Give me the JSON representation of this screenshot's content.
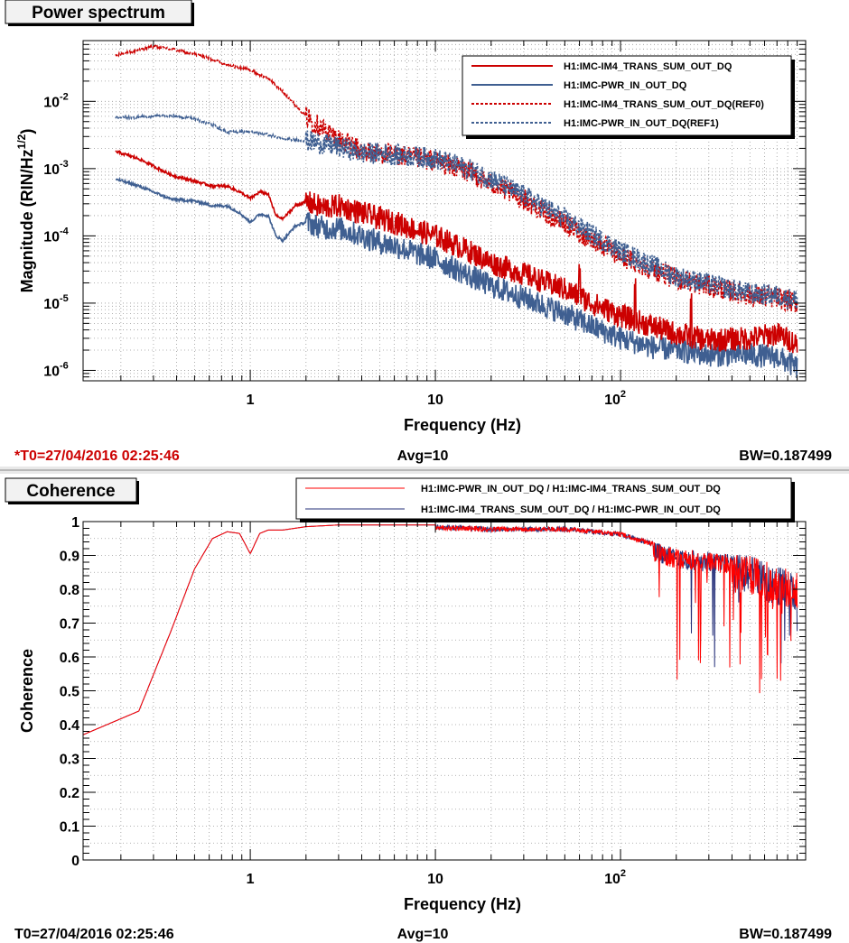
{
  "colors": {
    "red": "#cc0000",
    "blue": "#3f5f91",
    "coh_red": "#ff0000",
    "coh_blue": "#26307a",
    "grid": "#9a9a9a",
    "title_red": "#cc0000"
  },
  "chart_data": [
    {
      "type": "line",
      "title": "Power spectrum",
      "xlabel": "Frequency (Hz)",
      "ylabel_main": "Magnitude (RIN/Hz",
      "ylabel_sup": "1/2",
      "ylabel_end": ")",
      "x_scale": "log",
      "y_scale": "log",
      "xlim": [
        0.125,
        1000
      ],
      "ylim": [
        7e-07,
        0.08
      ],
      "x_ticks": [
        {
          "value": 1,
          "label": "1"
        },
        {
          "value": 10,
          "label": "10"
        },
        {
          "value": 100,
          "label": "10",
          "sup": "2"
        }
      ],
      "y_ticks": [
        {
          "value": 1e-06,
          "label": "10",
          "sup": "-6"
        },
        {
          "value": 1e-05,
          "label": "10",
          "sup": "-5"
        },
        {
          "value": 0.0001,
          "label": "10",
          "sup": "-4"
        },
        {
          "value": 0.001,
          "label": "10",
          "sup": "-3"
        },
        {
          "value": 0.01,
          "label": "10",
          "sup": "-2"
        }
      ],
      "grid": true,
      "legend_position": "top-right",
      "footer": {
        "left": "*T0=27/04/2016 02:25:46",
        "center": "Avg=10",
        "right": "BW=0.187499"
      },
      "series": [
        {
          "name": "H1:IMC-IM4_TRANS_SUM_OUT_DQ",
          "color": "#cc0000",
          "dash": "solid",
          "noise": 0.18,
          "x": [
            0.1875,
            0.25,
            0.375,
            0.5,
            0.625,
            0.75,
            0.875,
            1.0,
            1.125,
            1.25,
            1.375,
            1.5,
            1.75,
            2.0,
            2.5,
            3.0,
            4.0,
            5.0,
            6.0,
            8.0,
            10.0,
            15.0,
            20.0,
            30.0,
            50.0,
            70.0,
            100.0,
            150.0,
            200.0,
            300.0,
            500.0,
            700.0,
            900.0
          ],
          "y": [
            0.0018,
            0.0014,
            0.0008,
            0.00065,
            0.00055,
            0.00055,
            0.00045,
            0.00036,
            0.00045,
            0.00042,
            0.0002,
            0.00018,
            0.00028,
            0.00032,
            0.00026,
            0.00028,
            0.00022,
            0.00018,
            0.00016,
            0.00012,
            0.0001,
            6e-05,
            4e-05,
            2.7e-05,
            1.6e-05,
            1e-05,
            6.5e-06,
            4.5e-06,
            3.5e-06,
            2.8e-06,
            3e-06,
            3.5e-06,
            2.5e-06
          ]
        },
        {
          "name": "H1:IMC-PWR_IN_OUT_DQ",
          "color": "#3f5f91",
          "dash": "solid",
          "noise": 0.18,
          "x": [
            0.1875,
            0.25,
            0.375,
            0.5,
            0.625,
            0.75,
            0.875,
            1.0,
            1.125,
            1.25,
            1.375,
            1.5,
            1.75,
            2.0,
            2.5,
            3.0,
            4.0,
            5.0,
            6.0,
            8.0,
            10.0,
            15.0,
            20.0,
            30.0,
            50.0,
            70.0,
            100.0,
            150.0,
            200.0,
            300.0,
            500.0,
            700.0,
            900.0
          ],
          "y": [
            0.0007,
            0.00055,
            0.00035,
            0.00033,
            0.00028,
            0.00028,
            0.00022,
            0.00016,
            0.00021,
            0.0002,
            0.0001,
            8.5e-05,
            0.00014,
            0.00016,
            0.00013,
            0.00013,
            0.0001,
            8e-05,
            7.2e-05,
            5.4e-05,
            4.5e-05,
            2.6e-05,
            1.8e-05,
            1.2e-05,
            7e-06,
            4.5e-06,
            3e-06,
            2.2e-06,
            2e-06,
            1.7e-06,
            1.7e-06,
            1.6e-06,
            1.1e-06
          ]
        },
        {
          "name": "H1:IMC-IM4_TRANS_SUM_OUT_DQ(REF0)",
          "color": "#cc0000",
          "dash": "dotted",
          "noise": 0.16,
          "x": [
            0.1875,
            0.25,
            0.3,
            0.375,
            0.5,
            0.625,
            0.75,
            1.0,
            1.25,
            1.5,
            2.0,
            2.5,
            3.0,
            3.5,
            4.0,
            5.0,
            6.0,
            8.0,
            10.0,
            15.0,
            20.0,
            30.0,
            50.0,
            100.0,
            200.0,
            500.0,
            700.0,
            900.0
          ],
          "y": [
            0.048,
            0.058,
            0.065,
            0.06,
            0.05,
            0.042,
            0.035,
            0.029,
            0.022,
            0.014,
            0.006,
            0.0038,
            0.0028,
            0.0022,
            0.0018,
            0.0017,
            0.0016,
            0.0014,
            0.0013,
            0.0009,
            0.0006,
            0.00035,
            0.00015,
            5e-05,
            2.3e-05,
            1.3e-05,
            1.2e-05,
            1e-05
          ]
        },
        {
          "name": "H1:IMC-PWR_IN_OUT_DQ(REF1)",
          "color": "#3f5f91",
          "dash": "dotted",
          "noise": 0.16,
          "x": [
            0.1875,
            0.25,
            0.375,
            0.5,
            0.625,
            0.75,
            1.0,
            1.25,
            1.5,
            2.0,
            2.5,
            3.0,
            3.5,
            4.0,
            5.0,
            6.0,
            8.0,
            10.0,
            15.0,
            20.0,
            30.0,
            50.0,
            100.0,
            200.0,
            500.0,
            700.0,
            900.0
          ],
          "y": [
            0.0058,
            0.0058,
            0.0062,
            0.0055,
            0.0045,
            0.0035,
            0.0035,
            0.0032,
            0.0028,
            0.0026,
            0.0023,
            0.0021,
            0.0019,
            0.0017,
            0.0017,
            0.0016,
            0.0015,
            0.0014,
            0.001,
            0.0007,
            0.0004,
            0.00018,
            6e-05,
            2.5e-05,
            1.4e-05,
            1.3e-05,
            1.1e-05
          ]
        }
      ]
    },
    {
      "type": "line",
      "title": "Coherence",
      "xlabel": "Frequency (Hz)",
      "ylabel_main": "Coherence",
      "x_scale": "log",
      "y_scale": "linear",
      "xlim": [
        0.125,
        1000
      ],
      "ylim": [
        0,
        1
      ],
      "x_ticks": [
        {
          "value": 1,
          "label": "1"
        },
        {
          "value": 10,
          "label": "10"
        },
        {
          "value": 100,
          "label": "10",
          "sup": "2"
        }
      ],
      "y_ticks": [
        {
          "value": 0,
          "label": "0"
        },
        {
          "value": 0.1,
          "label": "0.1"
        },
        {
          "value": 0.2,
          "label": "0.2"
        },
        {
          "value": 0.3,
          "label": "0.3"
        },
        {
          "value": 0.4,
          "label": "0.4"
        },
        {
          "value": 0.5,
          "label": "0.5"
        },
        {
          "value": 0.6,
          "label": "0.6"
        },
        {
          "value": 0.7,
          "label": "0.7"
        },
        {
          "value": 0.8,
          "label": "0.8"
        },
        {
          "value": 0.9,
          "label": "0.9"
        },
        {
          "value": 1,
          "label": "1"
        }
      ],
      "grid": true,
      "legend_position": "top-right",
      "footer": {
        "left": "T0=27/04/2016 02:25:46",
        "center": "Avg=10",
        "right": "BW=0.187499"
      },
      "series": [
        {
          "name": "H1:IMC-PWR_IN_OUT_DQ / H1:IMC-IM4_TRANS_SUM_OUT_DQ",
          "color": "#ff0000",
          "dash": "solid",
          "x": [
            0.125,
            0.25,
            0.375,
            0.5,
            0.625,
            0.75,
            0.875,
            1.0,
            1.125,
            1.25,
            1.5,
            2.0,
            3.0,
            5.0,
            10.0,
            20.0,
            50.0,
            100.0,
            200.0,
            500.0,
            900.0
          ],
          "y": [
            0.37,
            0.44,
            0.68,
            0.86,
            0.95,
            0.97,
            0.965,
            0.905,
            0.965,
            0.975,
            0.975,
            0.985,
            0.99,
            0.99,
            0.99,
            0.985,
            0.985,
            0.97,
            0.92,
            0.9,
            0.85
          ]
        },
        {
          "name": "H1:IMC-IM4_TRANS_SUM_OUT_DQ / H1:IMC-PWR_IN_OUT_DQ",
          "color": "#26307a",
          "dash": "solid",
          "x": [
            0.125,
            0.25,
            0.375,
            0.5,
            0.625,
            0.75,
            0.875,
            1.0,
            1.125,
            1.25,
            1.5,
            2.0,
            3.0,
            5.0,
            10.0,
            20.0,
            50.0,
            100.0,
            200.0,
            500.0,
            900.0
          ],
          "y": [
            0.37,
            0.44,
            0.68,
            0.86,
            0.95,
            0.97,
            0.965,
            0.905,
            0.965,
            0.975,
            0.975,
            0.985,
            0.99,
            0.99,
            0.99,
            0.985,
            0.985,
            0.97,
            0.92,
            0.9,
            0.85
          ]
        }
      ]
    }
  ]
}
